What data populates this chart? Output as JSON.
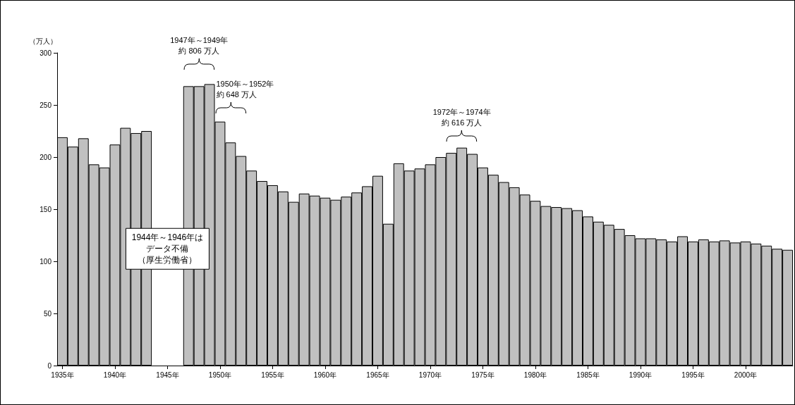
{
  "chart_data": {
    "type": "bar",
    "ylabel": "（万人）",
    "categories": [
      "1935年",
      null,
      null,
      null,
      null,
      "1940年",
      null,
      null,
      null,
      null,
      "1945年",
      null,
      null,
      null,
      null,
      "1950年",
      null,
      null,
      null,
      null,
      "1955年",
      null,
      null,
      null,
      null,
      "1960年",
      null,
      null,
      null,
      null,
      "1965年",
      null,
      null,
      null,
      null,
      "1970年",
      null,
      null,
      null,
      null,
      "1975年",
      null,
      null,
      null,
      null,
      "1980年",
      null,
      null,
      null,
      null,
      "1985年",
      null,
      null,
      null,
      null,
      "1990年",
      null,
      null,
      null,
      null,
      "1995年",
      null,
      null,
      null,
      null,
      "2000年",
      null,
      null,
      null,
      null
    ],
    "values": [
      219,
      210,
      218,
      193,
      190,
      212,
      228,
      223,
      225,
      null,
      null,
      null,
      268,
      268,
      270,
      234,
      214,
      201,
      187,
      177,
      173,
      167,
      157,
      165,
      163,
      161,
      159,
      162,
      166,
      172,
      182,
      136,
      194,
      187,
      189,
      193,
      200,
      204,
      209,
      203,
      190,
      183,
      176,
      171,
      164,
      158,
      153,
      152,
      151,
      149,
      143,
      138,
      135,
      131,
      125,
      122,
      122,
      121,
      119,
      124,
      119,
      121,
      119,
      120,
      118,
      119,
      117,
      115,
      112,
      111
    ],
    "color": "#c0c0c0",
    "ylim": [
      0,
      300
    ],
    "yticks": [
      0,
      50,
      100,
      150,
      200,
      250,
      300
    ],
    "grid": false,
    "annotations": [
      "1947年～1949年",
      "約 806 万人",
      "1950年～1952年",
      "約 648 万人",
      "1972年～1974年",
      "約 616 万人",
      "1944年～1946年は",
      "データ不備",
      "（厚生労働省）"
    ]
  }
}
